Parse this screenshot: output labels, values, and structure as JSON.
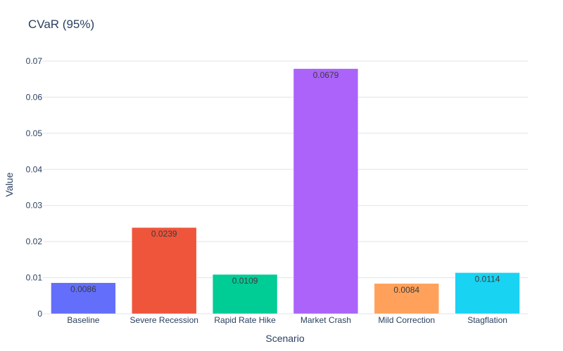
{
  "chart_data": {
    "type": "bar",
    "title": "CVaR (95%)",
    "xlabel": "Scenario",
    "ylabel": "Value",
    "categories": [
      "Baseline",
      "Severe Recession",
      "Rapid Rate Hike",
      "Market Crash",
      "Mild Correction",
      "Stagflation"
    ],
    "values": [
      0.0086,
      0.0239,
      0.0109,
      0.0679,
      0.0084,
      0.0114
    ],
    "data_labels": [
      "0.0086",
      "0.0239",
      "0.0109",
      "0.0679",
      "0.0084",
      "0.0114"
    ],
    "colors": [
      "#636efa",
      "#ef553b",
      "#00cc96",
      "#ab63fa",
      "#ffa15a",
      "#19d3f3"
    ],
    "ylim": [
      0,
      0.07
    ],
    "yticks": [
      0,
      0.01,
      0.02,
      0.03,
      0.04,
      0.05,
      0.06,
      0.07
    ],
    "ytick_labels": [
      "0",
      "0.01",
      "0.02",
      "0.03",
      "0.04",
      "0.05",
      "0.06",
      "0.07"
    ],
    "grid": true,
    "legend": "none"
  }
}
